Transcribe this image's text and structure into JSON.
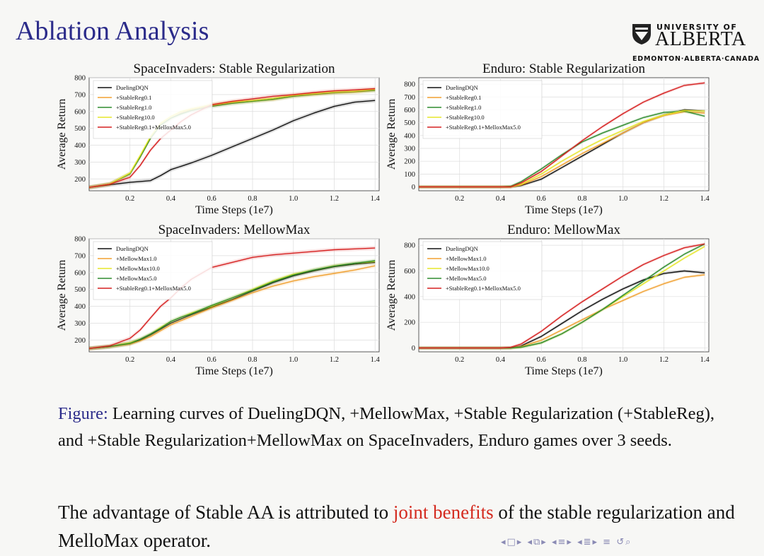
{
  "slide": {
    "title": "Ablation Analysis",
    "logo": {
      "university": "UNIVERSITY OF",
      "name": "ALBERTA",
      "place": "EDMONTON·ALBERTA·CANADA"
    },
    "caption": {
      "label": "Figure:",
      "text": "Learning curves of DuelingDQN, +MellowMax, +Stable Regularization (+StableReg), and +Stable Regularization+MellowMax on SpaceInvaders, Enduro games over 3 seeds."
    },
    "conclusion": {
      "before": "The advantage of Stable AA is attributed to ",
      "highlight": "joint benefits",
      "after": " of the stable regularization and MelloMax operator."
    },
    "nav_icons": [
      "nav-prev-icon",
      "nav-frame-icon",
      "nav-section-icon",
      "nav-subsection-icon",
      "nav-align-icon",
      "nav-search-icon"
    ],
    "colors": {
      "title": "#2b2b8a",
      "highlight": "#d42a1f"
    }
  },
  "chart_data": [
    {
      "type": "line",
      "title": "SpaceInvaders: Stable Regularization",
      "xlabel": "Time Steps (1e7)",
      "ylabel": "Average Return",
      "xlim": [
        0,
        1.42
      ],
      "ylim": [
        130,
        800
      ],
      "xticks": [
        0.2,
        0.4,
        0.6,
        0.8,
        1.0,
        1.2,
        1.4
      ],
      "yticks": [
        200,
        300,
        400,
        500,
        600,
        700,
        800
      ],
      "grid": true,
      "legend": "top-left",
      "x": [
        0,
        0.1,
        0.2,
        0.25,
        0.3,
        0.35,
        0.4,
        0.45,
        0.5,
        0.6,
        0.7,
        0.8,
        0.9,
        1.0,
        1.1,
        1.2,
        1.3,
        1.4
      ],
      "series": [
        {
          "name": "DuelingDQN",
          "color": "#111111",
          "values": [
            150,
            165,
            180,
            185,
            190,
            220,
            255,
            275,
            295,
            340,
            390,
            440,
            490,
            545,
            590,
            630,
            655,
            665
          ]
        },
        {
          "name": "+StableReg0.1",
          "color": "#f0a030",
          "values": [
            150,
            170,
            230,
            330,
            440,
            520,
            560,
            590,
            610,
            635,
            650,
            660,
            670,
            690,
            700,
            710,
            715,
            725
          ]
        },
        {
          "name": "+StableReg1.0",
          "color": "#2e8b2e",
          "values": [
            150,
            170,
            230,
            330,
            440,
            520,
            560,
            585,
            605,
            630,
            648,
            660,
            672,
            690,
            702,
            712,
            718,
            725
          ]
        },
        {
          "name": "+StableReg10.0",
          "color": "#e6e62a",
          "values": [
            150,
            170,
            235,
            340,
            450,
            530,
            570,
            600,
            615,
            640,
            655,
            665,
            678,
            695,
            705,
            715,
            720,
            730
          ]
        },
        {
          "name": "+StableReg0.1+MelloxMax5.0",
          "color": "#d62020",
          "values": [
            150,
            168,
            210,
            280,
            370,
            440,
            490,
            540,
            580,
            640,
            660,
            675,
            690,
            700,
            712,
            722,
            728,
            735
          ]
        }
      ]
    },
    {
      "type": "line",
      "title": "Enduro: Stable Regularization",
      "xlabel": "Time Steps (1e7)",
      "ylabel": "Average Return",
      "xlim": [
        0,
        1.42
      ],
      "ylim": [
        -30,
        850
      ],
      "xticks": [
        0.2,
        0.4,
        0.6,
        0.8,
        1.0,
        1.2,
        1.4
      ],
      "yticks": [
        0,
        100,
        200,
        300,
        400,
        500,
        600,
        700,
        800
      ],
      "grid": true,
      "legend": "top-left",
      "x": [
        0,
        0.2,
        0.4,
        0.45,
        0.5,
        0.6,
        0.7,
        0.8,
        0.9,
        1.0,
        1.1,
        1.2,
        1.3,
        1.4
      ],
      "series": [
        {
          "name": "DuelingDQN",
          "color": "#111111",
          "values": [
            0,
            0,
            0,
            0,
            10,
            60,
            150,
            240,
            330,
            420,
            500,
            560,
            600,
            590
          ]
        },
        {
          "name": "+StableReg0.1",
          "color": "#f0a030",
          "values": [
            0,
            0,
            0,
            0,
            15,
            80,
            170,
            260,
            340,
            420,
            500,
            555,
            585,
            575
          ]
        },
        {
          "name": "+StableReg1.0",
          "color": "#2e8b2e",
          "values": [
            0,
            0,
            0,
            5,
            40,
            140,
            250,
            350,
            420,
            480,
            540,
            580,
            590,
            550
          ]
        },
        {
          "name": "+StableReg10.0",
          "color": "#e6e62a",
          "values": [
            0,
            0,
            0,
            0,
            20,
            100,
            200,
            290,
            370,
            440,
            510,
            560,
            595,
            590
          ]
        },
        {
          "name": "+StableReg0.1+MelloxMax5.0",
          "color": "#d62020",
          "values": [
            0,
            0,
            0,
            0,
            30,
            120,
            240,
            360,
            470,
            570,
            660,
            730,
            790,
            810
          ]
        }
      ]
    },
    {
      "type": "line",
      "title": "SpaceInvaders: MellowMax",
      "xlabel": "Time Steps (1e7)",
      "ylabel": "Average Return",
      "xlim": [
        0,
        1.42
      ],
      "ylim": [
        130,
        800
      ],
      "xticks": [
        0.2,
        0.4,
        0.6,
        0.8,
        1.0,
        1.2,
        1.4
      ],
      "yticks": [
        200,
        300,
        400,
        500,
        600,
        700,
        800
      ],
      "grid": true,
      "legend": "top-left",
      "x": [
        0,
        0.1,
        0.2,
        0.25,
        0.3,
        0.35,
        0.4,
        0.45,
        0.5,
        0.6,
        0.7,
        0.8,
        0.9,
        1.0,
        1.1,
        1.2,
        1.3,
        1.4
      ],
      "series": [
        {
          "name": "DuelingDQN",
          "color": "#111111",
          "values": [
            150,
            160,
            180,
            200,
            230,
            265,
            300,
            325,
            350,
            395,
            440,
            490,
            540,
            580,
            610,
            635,
            650,
            660
          ]
        },
        {
          "name": "+MellowMax1.0",
          "color": "#f0a030",
          "values": [
            150,
            160,
            175,
            195,
            220,
            255,
            290,
            315,
            340,
            390,
            435,
            480,
            520,
            550,
            575,
            595,
            615,
            640
          ]
        },
        {
          "name": "+MellowMax10.0",
          "color": "#e6e62a",
          "values": [
            150,
            162,
            185,
            205,
            235,
            275,
            310,
            335,
            360,
            400,
            450,
            500,
            550,
            590,
            615,
            640,
            655,
            665
          ]
        },
        {
          "name": "+MellowMax5.0",
          "color": "#2e8b2e",
          "values": [
            150,
            162,
            180,
            205,
            235,
            270,
            310,
            335,
            355,
            405,
            450,
            495,
            545,
            585,
            615,
            638,
            655,
            670
          ]
        },
        {
          "name": "+StableReg0.1+MelloxMax5.0",
          "color": "#d62020",
          "values": [
            150,
            165,
            210,
            260,
            330,
            400,
            450,
            510,
            560,
            630,
            660,
            690,
            705,
            715,
            725,
            735,
            740,
            745
          ]
        }
      ]
    },
    {
      "type": "line",
      "title": "Enduro: MellowMax",
      "xlabel": "Time Steps (1e7)",
      "ylabel": "Average Return",
      "xlim": [
        0,
        1.42
      ],
      "ylim": [
        -30,
        850
      ],
      "xticks": [
        0.2,
        0.4,
        0.6,
        0.8,
        1.0,
        1.2,
        1.4
      ],
      "yticks": [
        0,
        200,
        400,
        600,
        800
      ],
      "grid": true,
      "legend": "top-left",
      "x": [
        0,
        0.2,
        0.4,
        0.45,
        0.5,
        0.6,
        0.7,
        0.8,
        0.9,
        1.0,
        1.1,
        1.2,
        1.3,
        1.4
      ],
      "series": [
        {
          "name": "DuelingDQN",
          "color": "#111111",
          "values": [
            0,
            0,
            0,
            0,
            15,
            90,
            190,
            290,
            380,
            460,
            530,
            580,
            600,
            585
          ]
        },
        {
          "name": "+MellowMax1.0",
          "color": "#f0a030",
          "values": [
            0,
            0,
            0,
            0,
            10,
            60,
            140,
            220,
            300,
            370,
            440,
            500,
            550,
            570
          ]
        },
        {
          "name": "+MellowMax10.0",
          "color": "#e6e62a",
          "values": [
            0,
            0,
            0,
            0,
            5,
            40,
            110,
            200,
            300,
            400,
            500,
            600,
            700,
            790
          ]
        },
        {
          "name": "+MellowMax5.0",
          "color": "#2e8b2e",
          "values": [
            0,
            0,
            0,
            0,
            5,
            40,
            110,
            200,
            300,
            410,
            520,
            630,
            730,
            810
          ]
        },
        {
          "name": "+StableReg0.1+MelloxMax5.0",
          "color": "#d62020",
          "values": [
            0,
            0,
            0,
            5,
            30,
            130,
            250,
            360,
            460,
            560,
            650,
            720,
            780,
            810
          ]
        }
      ]
    }
  ]
}
